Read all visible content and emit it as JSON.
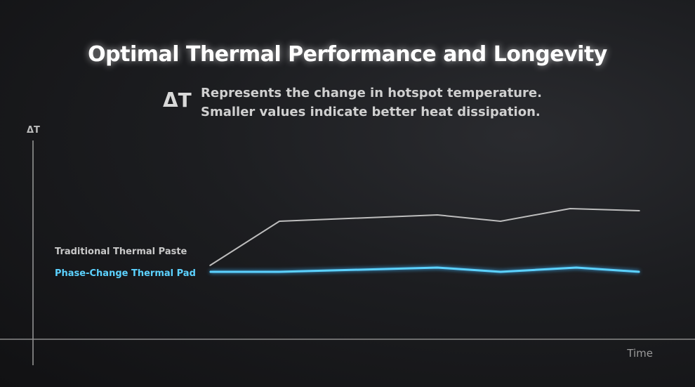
{
  "title": "Optimal Thermal Performance and Longevity",
  "note": {
    "symbol": "ΔT",
    "lines": [
      "Represents the change in hotspot temperature.",
      "Smaller values indicate better heat dissipation."
    ]
  },
  "chart_data": {
    "type": "line",
    "ylabel": "ΔT",
    "xlabel": "Time",
    "xlim": [
      0,
      100
    ],
    "ylim": [
      0,
      100
    ],
    "grid": false,
    "legend": "left",
    "series": [
      {
        "name": "Traditional Thermal Paste",
        "color": "#bdbdbd",
        "x": [
          28,
          39,
          64,
          74,
          85,
          96
        ],
        "y": [
          35,
          56,
          59,
          56,
          62,
          61
        ]
      },
      {
        "name": "Phase-Change Thermal Pad",
        "color": "#5cd2ff",
        "x": [
          28,
          39,
          64,
          74,
          86,
          96
        ],
        "y": [
          32,
          32,
          34,
          32,
          34,
          32
        ]
      }
    ]
  }
}
